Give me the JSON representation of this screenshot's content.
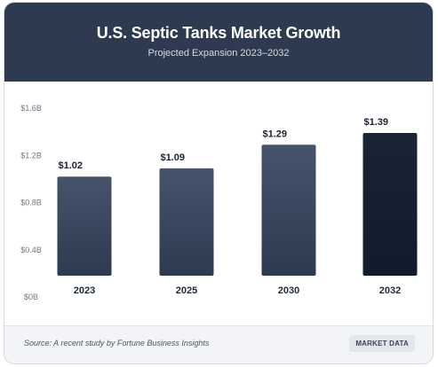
{
  "header": {
    "title": "U.S. Septic Tanks Market Growth",
    "subtitle": "Projected Expansion 2023–2032"
  },
  "footer": {
    "source": "Source: A recent study by Fortune Business Insights",
    "badge": "MARKET DATA"
  },
  "colors": {
    "header_bg": "#2d3a4f",
    "bar_start": "#46536b",
    "bar_end": "#121b2b"
  },
  "chart_data": {
    "type": "bar",
    "title": "U.S. Septic Tanks Market Growth",
    "subtitle": "Projected Expansion 2023–2032",
    "categories": [
      "2023",
      "2025",
      "2030",
      "2032"
    ],
    "values": [
      1.02,
      1.09,
      1.29,
      1.39
    ],
    "value_labels": [
      "$1.02",
      "$1.09",
      "$1.29",
      "$1.39"
    ],
    "ylim": [
      0,
      1.6
    ],
    "yticks": [
      0,
      0.4,
      0.8,
      1.2,
      1.6
    ],
    "ytick_labels": [
      "$0B",
      "$0.4B",
      "$0.8B",
      "$1.2B",
      "$1.6B"
    ],
    "xlabel": "",
    "ylabel": "",
    "grid": false,
    "legend": "none"
  }
}
